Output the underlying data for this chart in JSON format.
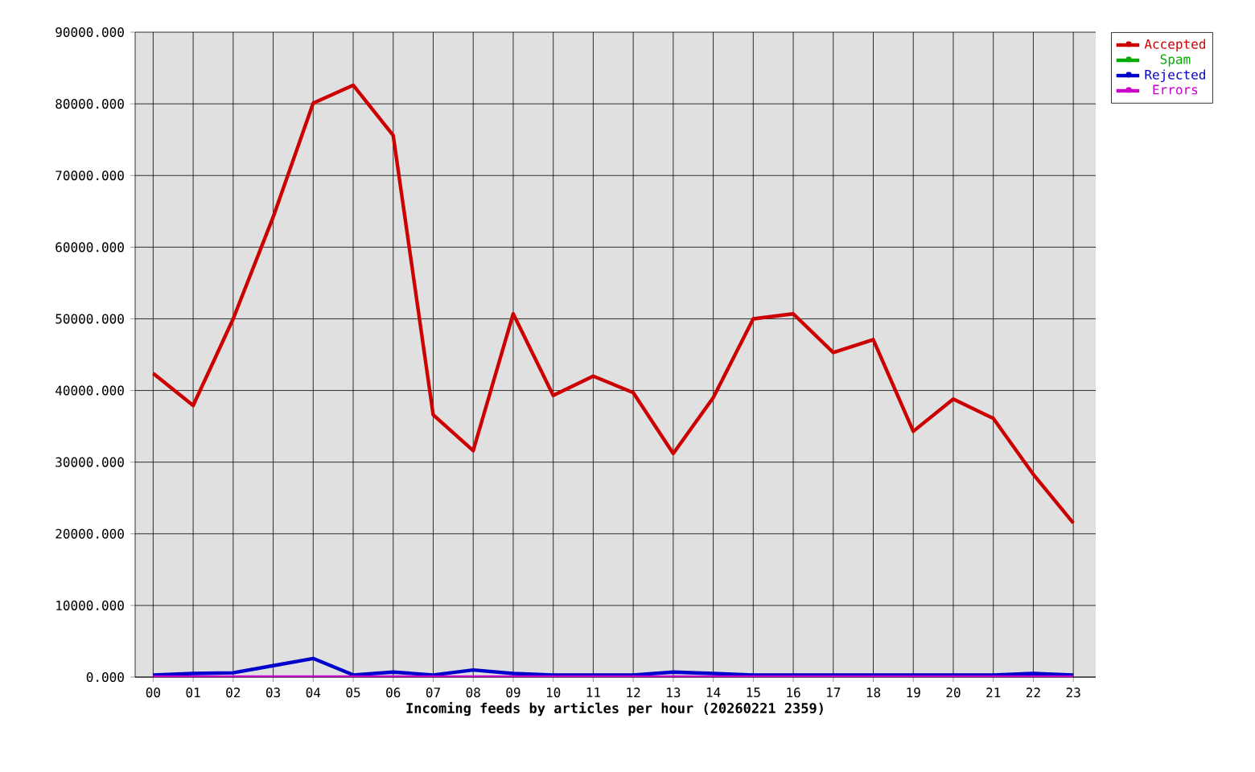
{
  "chart_data": {
    "type": "line",
    "xlabel": "Incoming feeds by articles per hour (20260221 2359)",
    "categories": [
      "00",
      "01",
      "02",
      "03",
      "04",
      "05",
      "06",
      "07",
      "08",
      "09",
      "10",
      "11",
      "12",
      "13",
      "14",
      "15",
      "16",
      "17",
      "18",
      "19",
      "20",
      "21",
      "22",
      "23"
    ],
    "series": [
      {
        "name": "Accepted",
        "color": "#cc0000",
        "values": [
          42400,
          37900,
          50000,
          64200,
          80100,
          82600,
          75600,
          36600,
          31600,
          50700,
          39300,
          42000,
          39700,
          31200,
          39000,
          50000,
          50700,
          45300,
          47100,
          34300,
          38800,
          36100,
          28300,
          21500
        ]
      },
      {
        "name": "Spam",
        "color": "#00aa00",
        "values": [
          null,
          null,
          null,
          null,
          null,
          null,
          null,
          null,
          null,
          null,
          null,
          null,
          null,
          null,
          null,
          null,
          null,
          null,
          null,
          null,
          null,
          null,
          null,
          null
        ]
      },
      {
        "name": "Rejected",
        "color": "#0000cc",
        "values": [
          300,
          500,
          600,
          1600,
          2600,
          300,
          700,
          300,
          1000,
          500,
          300,
          300,
          300,
          700,
          500,
          300,
          300,
          300,
          300,
          300,
          300,
          300,
          500,
          300
        ]
      },
      {
        "name": "Errors",
        "color": "#cc00cc",
        "values": [
          0,
          0,
          0,
          0,
          0,
          0,
          0,
          0,
          0,
          0,
          0,
          0,
          0,
          0,
          0,
          0,
          0,
          0,
          0,
          0,
          0,
          0,
          0,
          0
        ]
      }
    ],
    "ylim": [
      0,
      90000
    ],
    "yticks": [
      {
        "value": 0,
        "label": "0.000"
      },
      {
        "value": 10000,
        "label": "10000.000"
      },
      {
        "value": 20000,
        "label": "20000.000"
      },
      {
        "value": 30000,
        "label": "30000.000"
      },
      {
        "value": 40000,
        "label": "40000.000"
      },
      {
        "value": 50000,
        "label": "50000.000"
      },
      {
        "value": 60000,
        "label": "60000.000"
      },
      {
        "value": 70000,
        "label": "70000.000"
      },
      {
        "value": 80000,
        "label": "80000.000"
      },
      {
        "value": 90000,
        "label": "90000.000"
      }
    ],
    "grid": true,
    "legend": "top right",
    "marker": "none",
    "line_style": "solid"
  }
}
